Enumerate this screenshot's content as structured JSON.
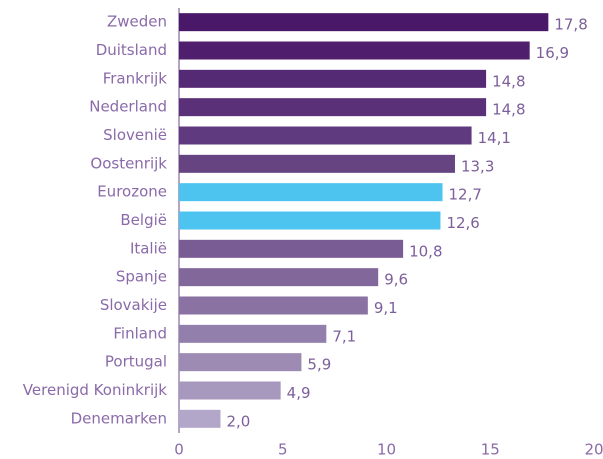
{
  "chart_data": {
    "type": "bar",
    "orientation": "horizontal",
    "categories": [
      "Zweden",
      "Duitsland",
      "Frankrijk",
      "Nederland",
      "Slovenië",
      "Oostenrijk",
      "Eurozone",
      "België",
      "Italië",
      "Spanje",
      "Slovakije",
      "Finland",
      "Portugal",
      "Verenigd Koninkrijk",
      "Denemarken"
    ],
    "values": [
      17.8,
      16.9,
      14.8,
      14.8,
      14.1,
      13.3,
      12.7,
      12.6,
      10.8,
      9.6,
      9.1,
      7.1,
      5.9,
      4.9,
      2.0
    ],
    "value_labels": [
      "17,8",
      "16,9",
      "14,8",
      "14,8",
      "14,1",
      "13,3",
      "12,7",
      "12,6",
      "10,8",
      "9,6",
      "9,1",
      "7,1",
      "5,9",
      "4,9",
      "2,0"
    ],
    "colors": [
      "#4a1868",
      "#4f1f6e",
      "#552a74",
      "#5a3078",
      "#603a7e",
      "#664482",
      "#4dc3ef",
      "#4dc3ef",
      "#7a5c94",
      "#82679b",
      "#8a72a2",
      "#937fab",
      "#9d8bb4",
      "#a798be",
      "#b3a7c9"
    ],
    "xlim": [
      0,
      20
    ],
    "xticks": [
      0,
      5,
      10,
      15,
      20
    ],
    "grid": false
  }
}
